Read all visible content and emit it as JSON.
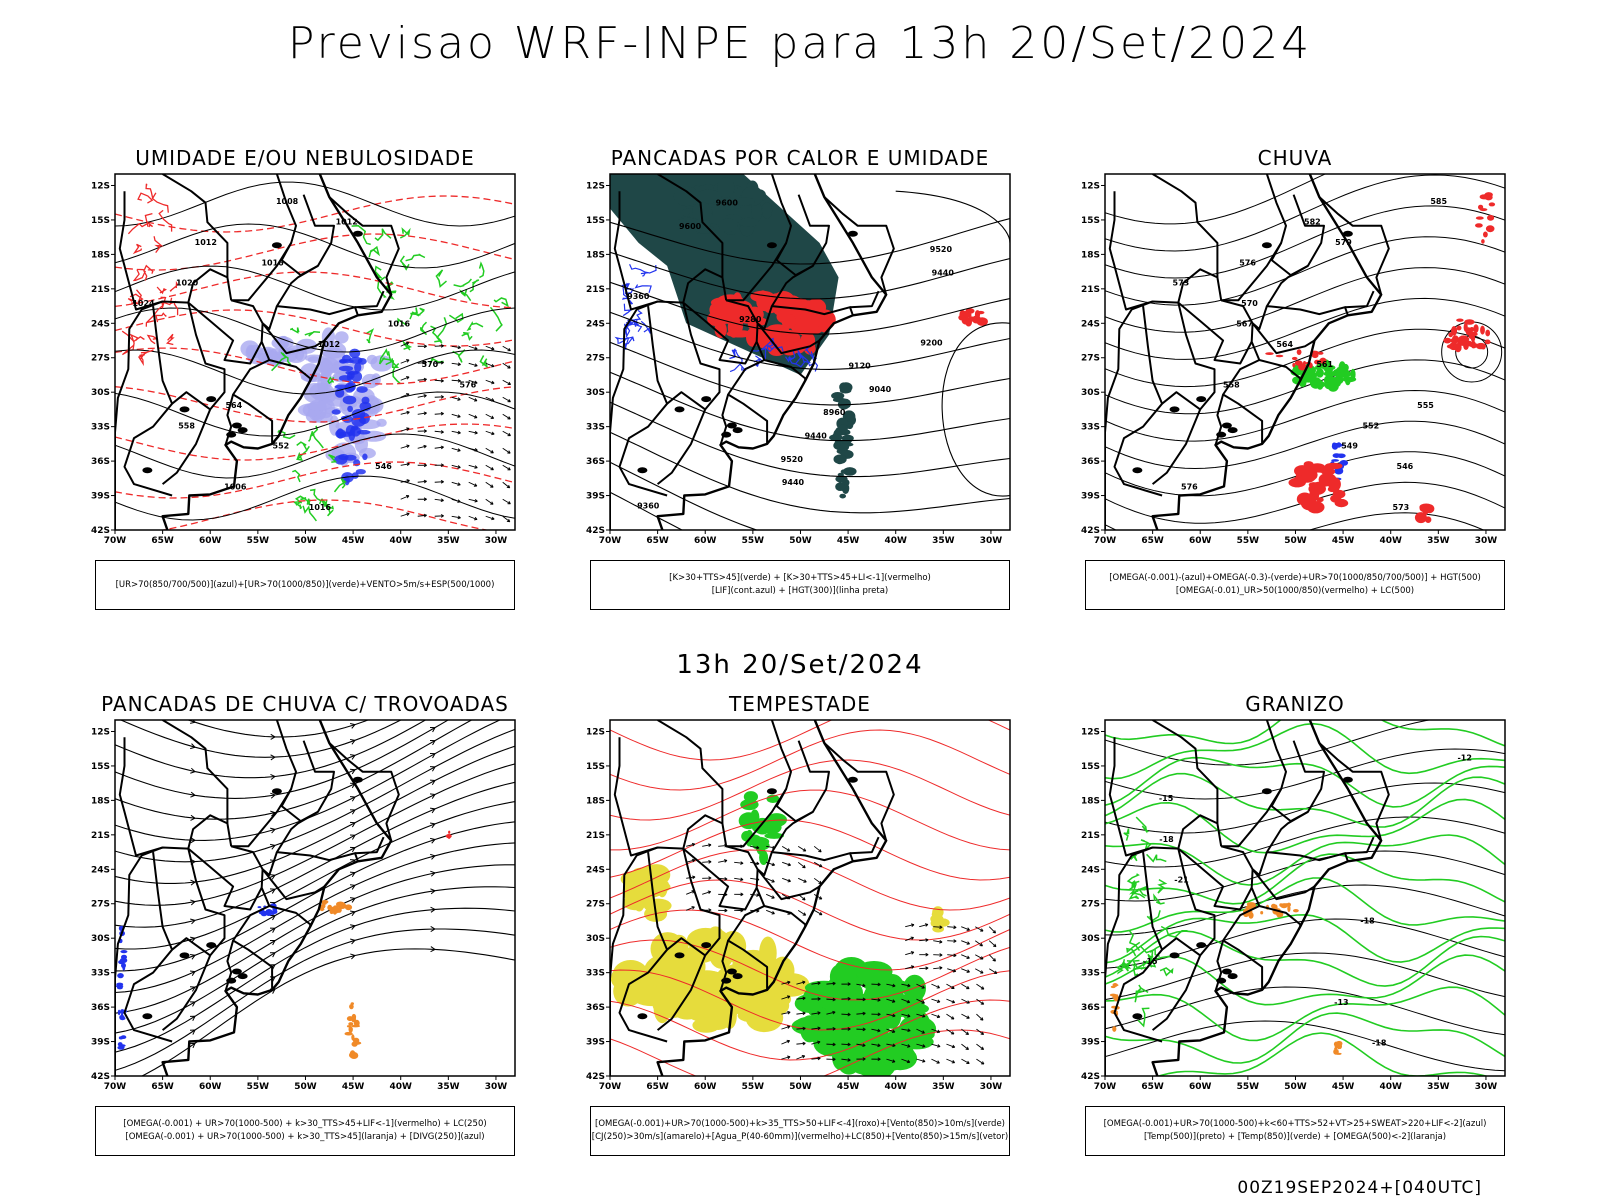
{
  "title": "Previsao WRF-INPE  para 13h 20/Set/2024",
  "mid_date": "13h 20/Set/2024",
  "footer": "00Z19SEP2024+[040UTC]",
  "axes": {
    "lat_labels": [
      "12S",
      "15S",
      "18S",
      "21S",
      "24S",
      "27S",
      "30S",
      "33S",
      "36S",
      "39S",
      "42S"
    ],
    "lon_labels": [
      "70W",
      "65W",
      "60W",
      "55W",
      "50W",
      "45W",
      "40W",
      "35W",
      "30W"
    ]
  },
  "panels": [
    {
      "title": "UMIDADE E/OU NEBULOSIDADE",
      "caption": [
        "[UR>70(850/700/500)](azul)+[UR>70(1000/850)](verde)+VENTO>5m/s+ESP(500/1000)"
      ],
      "contour_labels": [
        "1008",
        "1012",
        "1012",
        "1016",
        "1020",
        "1024",
        "1016",
        "1012",
        "570",
        "576",
        "564",
        "558",
        "552",
        "546",
        "1006",
        "1016"
      ]
    },
    {
      "title": "PANCADAS POR CALOR E UMIDADE",
      "caption": [
        "[K>30+TTS>45](verde) + [K>30+TTS>45+LI<-1](vermelho)",
        "[LIF](cont.azul) + [HGT(300)](linha preta)"
      ],
      "contour_labels": [
        "9600",
        "9600",
        "9520",
        "9440",
        "9360",
        "9280",
        "9200",
        "9120",
        "9040",
        "8960",
        "9440",
        "9520",
        "9440",
        "9360"
      ]
    },
    {
      "title": "CHUVA",
      "caption": [
        "[OMEGA(-0.001)-(azul)+OMEGA(-0.3)-(verde)+UR>70(1000/850/700/500)] + HGT(500)",
        "[OMEGA(-0.01)_UR>50(1000/850)(vermelho) + LC(500)"
      ],
      "contour_labels": [
        "585",
        "582",
        "579",
        "576",
        "573",
        "570",
        "567",
        "564",
        "561",
        "558",
        "555",
        "552",
        "549",
        "546",
        "576",
        "573"
      ]
    },
    {
      "title": "PANCADAS DE CHUVA C/ TROVOADAS",
      "caption": [
        "[OMEGA(-0.001) + UR>70(1000-500) + k>30_TTS>45+LIF<-1](vermelho) + LC(250)",
        "[OMEGA(-0.001) + UR>70(1000-500) + k>30_TTS>45](laranja) + [DIVG(250)](azul)"
      ]
    },
    {
      "title": "TEMPESTADE",
      "caption": [
        "[OMEGA(-0.001)+UR>70(1000-500)+k>35_TTS>50+LIF<-4](roxo)+[Vento(850)>10m/s](verde)",
        "[CJ(250)>30m/s](amarelo)+[Agua_P(40-60mm)](vermelho)+LC(850)+[Vento(850)>15m/s](vetor)"
      ]
    },
    {
      "title": "GRANIZO",
      "caption": [
        "[OMEGA(-0.001)+UR>70(1000-500)+k<60+TTS>52+VT>25+SWEAT>220+LIF<-2](azul)",
        "[Temp(500)](preto) + [Temp(850)](verde) + [OMEGA(500)<-2](laranja)"
      ],
      "contour_labels": [
        "-12",
        "-15",
        "-18",
        "-21",
        "-18",
        "-15",
        "-13",
        "-18"
      ]
    }
  ],
  "colors": {
    "black": "#000000",
    "red": "#ee2a2a",
    "green": "#22cc22",
    "blue": "#2233ee",
    "lilac": "#a9a9f0",
    "teal": "#1f4747",
    "yellow": "#e6dc3c",
    "orange": "#f08a28"
  }
}
